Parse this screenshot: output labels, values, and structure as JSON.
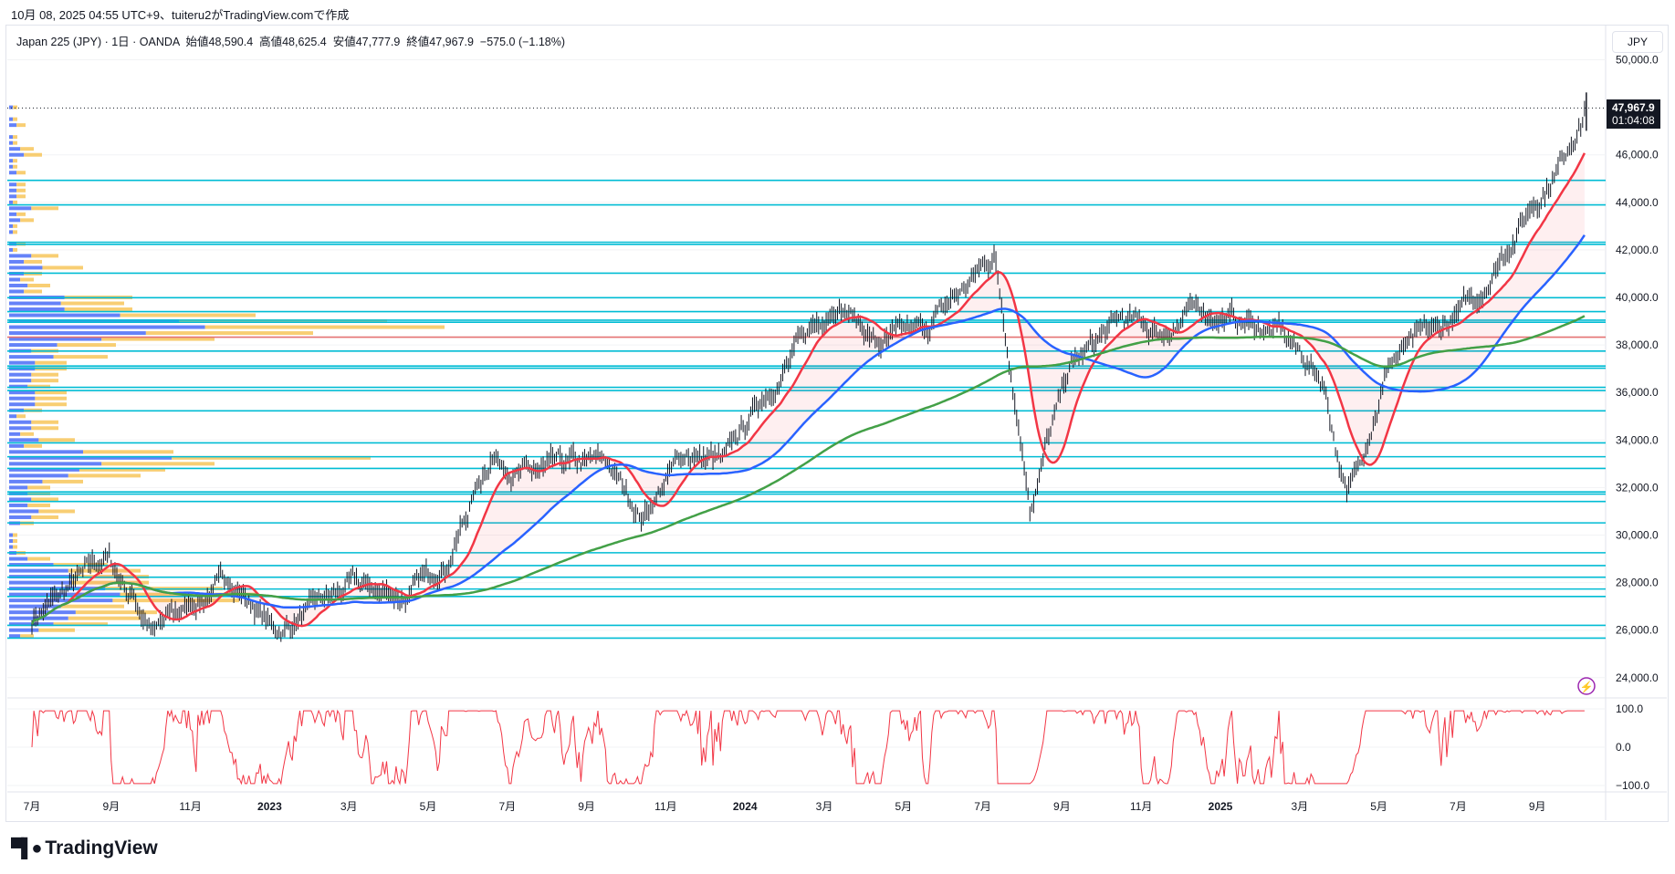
{
  "caption": "10月 08, 2025 04:55 UTC+9、tuiteru2がTradingView.comで作成",
  "legend": "Japan 225 (JPY) · 1日 · OANDA  始値48,590.4  高値48,625.4  安値47,777.9  終値47,967.9  −575.0 (−1.18%)",
  "currency": "JPY",
  "last_price": "47,967.9",
  "countdown": "01:04:08",
  "brand": "TradingView",
  "colors": {
    "candle": "#131722",
    "ma_short": "#f23645",
    "ma_mid": "#2962ff",
    "ma_long": "#43a047",
    "hline": "#00bcd4",
    "hline_red": "#e57373",
    "vp_up": "#4a6cf7",
    "vp_down": "#f7c55a",
    "osc": "#f23645"
  },
  "chart_data": {
    "type": "line",
    "title": "Japan 225 (JPY) 1日 OANDA",
    "ylim": [
      23500,
      50800
    ],
    "y_ticks": [
      "50,000.0",
      "46,000.0",
      "44,000.0",
      "42,000.0",
      "40,000.0",
      "38,000.0",
      "36,000.0",
      "34,000.0",
      "32,000.0",
      "30,000.0",
      "28,000.0",
      "26,000.0",
      "24,000.0"
    ],
    "y_tick_values": [
      50000,
      46000,
      44000,
      42000,
      40000,
      38000,
      36000,
      34000,
      32000,
      30000,
      28000,
      26000,
      24000
    ],
    "x_ticks": [
      "7月",
      "9月",
      "11月",
      "2023",
      "3月",
      "5月",
      "7月",
      "9月",
      "11月",
      "2024",
      "3月",
      "5月",
      "7月",
      "9月",
      "11月",
      "2025",
      "3月",
      "5月",
      "7月",
      "9月"
    ],
    "x_tick_months": [
      0,
      2,
      4,
      6,
      8,
      10,
      12,
      14,
      16,
      18,
      20,
      22,
      24,
      26,
      28,
      30,
      32,
      34,
      36,
      38
    ],
    "price_path_month_index": [
      0,
      1.9,
      3.1,
      5,
      6.2,
      8,
      9.5,
      10.5,
      11.6,
      12.5,
      14.5,
      15.4,
      16.5,
      17.5,
      18.5,
      20.3,
      21.4,
      22.5,
      24.3,
      25.2,
      26.2,
      27.5,
      28.5,
      29.5,
      30.5,
      31.5,
      32.6,
      33.2,
      34.3,
      35.5,
      36.5,
      37.5,
      38.5,
      39.2
    ],
    "price_path": [
      26500,
      29000,
      26000,
      28200,
      25900,
      27800,
      27400,
      29000,
      33500,
      32500,
      33000,
      30800,
      33500,
      33000,
      36000,
      40000,
      38000,
      38500,
      41800,
      31500,
      37000,
      39000,
      38500,
      39500,
      39000,
      38500,
      36500,
      31500,
      37500,
      38500,
      40000,
      43000,
      45500,
      47968
    ],
    "horizontal_levels": [
      44926,
      43894,
      42322,
      42232,
      41020,
      39987,
      39403,
      39044,
      38955,
      37742,
      37114,
      37024,
      36216,
      36081,
      35228,
      33881,
      33297,
      32803,
      31816,
      31726,
      31412,
      30513,
      29256,
      28717,
      28227,
      27730,
      27415,
      26203,
      25664
    ],
    "poc_level": 38326,
    "moving_averages": [
      "short",
      "mid",
      "long"
    ],
    "oscillator": {
      "ticks": [
        "100.0",
        "0.0",
        "−100.0"
      ],
      "tick_values": [
        100,
        0,
        -100
      ]
    }
  }
}
